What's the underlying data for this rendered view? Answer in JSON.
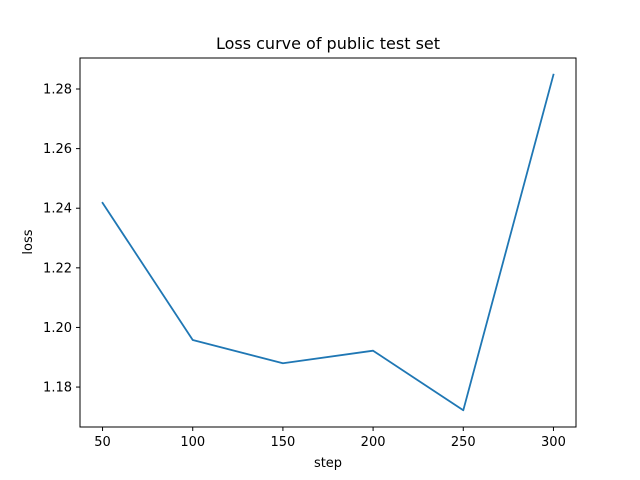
{
  "chart_data": {
    "type": "line",
    "title": "Loss curve of public test set",
    "xlabel": "step",
    "ylabel": "loss",
    "x": [
      50,
      100,
      150,
      200,
      250,
      300
    ],
    "series": [
      {
        "values": [
          1.2418,
          1.1958,
          1.188,
          1.1922,
          1.1722,
          1.2848
        ],
        "color": "#1f77b4"
      }
    ],
    "xlim": [
      37.5,
      312.5
    ],
    "ylim": [
      1.1666,
      1.2904
    ],
    "xticks": [
      50,
      100,
      150,
      200,
      250,
      300
    ],
    "xtick_labels": [
      "50",
      "100",
      "150",
      "200",
      "250",
      "300"
    ],
    "yticks": [
      1.18,
      1.2,
      1.22,
      1.24,
      1.26,
      1.28
    ],
    "ytick_labels": [
      "1.18",
      "1.20",
      "1.22",
      "1.24",
      "1.26",
      "1.28"
    ],
    "grid": false,
    "legend": "none"
  }
}
